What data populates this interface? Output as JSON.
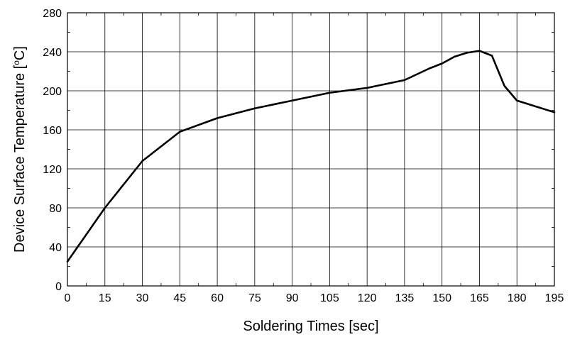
{
  "chart_data": {
    "type": "line",
    "title": "",
    "xlabel": "Soldering Times [sec]",
    "ylabel_parts": {
      "before": "Device Surface Temperature [",
      "sup": "o",
      "after": "C]"
    },
    "xlim": [
      0,
      195
    ],
    "ylim": [
      0,
      280
    ],
    "x_ticks": [
      0,
      15,
      30,
      45,
      60,
      75,
      90,
      105,
      120,
      135,
      150,
      165,
      180,
      195
    ],
    "y_ticks": [
      0,
      40,
      80,
      120,
      160,
      200,
      240,
      280
    ],
    "grid": true,
    "legend": "none",
    "series": [
      {
        "color": "#000000",
        "x": [
          0,
          15,
          30,
          45,
          60,
          75,
          90,
          105,
          120,
          135,
          145,
          150,
          155,
          160,
          165,
          170,
          175,
          180,
          195
        ],
        "y": [
          25,
          80,
          128,
          158,
          172,
          182,
          190,
          198,
          203,
          211,
          223,
          228,
          235,
          239,
          241,
          236,
          205,
          190,
          178
        ]
      }
    ]
  }
}
